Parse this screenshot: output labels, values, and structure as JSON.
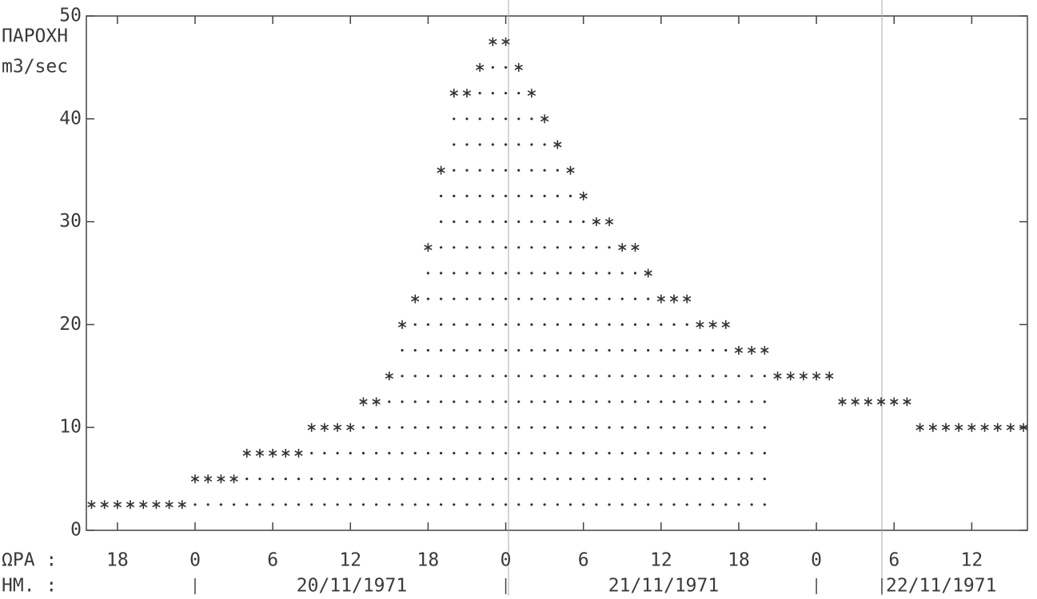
{
  "chart_data": {
    "type": "dotmatrix",
    "y_label": [
      "ΠΑΡΟΧΗ",
      "m3/sec"
    ],
    "x_row_label": "ΩΡΑ :",
    "date_row_label": "ΗΜ. :",
    "dates": [
      "20/11/1971",
      "21/11/1971",
      "22/11/1971"
    ],
    "x": [
      16,
      17,
      18,
      19,
      20,
      21,
      22,
      23,
      24,
      25,
      26,
      27,
      28,
      29,
      30,
      31,
      32,
      33,
      34,
      35,
      36,
      37,
      38,
      39,
      40,
      41,
      42,
      43,
      44,
      45,
      46,
      47,
      48,
      49,
      50,
      51,
      52,
      53,
      54,
      55,
      56,
      57,
      58,
      59,
      60,
      61,
      62,
      63,
      64,
      65,
      66,
      67,
      68,
      69,
      70,
      71,
      72,
      73,
      74,
      75,
      76,
      77,
      78,
      79,
      80,
      81,
      82,
      83,
      84,
      85,
      86,
      87,
      88
    ],
    "values": [
      2.5,
      2.5,
      2.5,
      2.5,
      2.5,
      2.5,
      2.5,
      2.5,
      5,
      5,
      5,
      5,
      7.5,
      7.5,
      7.5,
      7.5,
      7.5,
      10,
      10,
      10,
      10,
      12.5,
      12.5,
      15,
      20,
      22.5,
      27.5,
      35,
      42.5,
      42.5,
      45,
      47.5,
      47.5,
      45,
      42.5,
      40,
      37.5,
      35,
      32.5,
      30,
      30,
      27.5,
      27.5,
      25,
      22.5,
      22.5,
      22.5,
      20,
      20,
      20,
      17.5,
      17.5,
      17.5,
      15,
      15,
      15,
      15,
      15,
      12.5,
      12.5,
      12.5,
      12.5,
      12.5,
      12.5,
      10,
      10,
      10,
      10,
      10,
      10,
      10,
      10,
      10
    ],
    "color": "#333333",
    "xlim": [
      15.6,
      88.3
    ],
    "xticks": [
      {
        "value": 18,
        "label": "18"
      },
      {
        "value": 24,
        "label": "0"
      },
      {
        "value": 30,
        "label": "6"
      },
      {
        "value": 36,
        "label": "12"
      },
      {
        "value": 42,
        "label": "18"
      },
      {
        "value": 48,
        "label": "0"
      },
      {
        "value": 54,
        "label": "6"
      },
      {
        "value": 60,
        "label": "12"
      },
      {
        "value": 66,
        "label": "18"
      },
      {
        "value": 72,
        "label": "0"
      },
      {
        "value": 78,
        "label": "6"
      },
      {
        "value": 84,
        "label": "12"
      }
    ],
    "ylim": [
      0,
      50
    ],
    "yticks": [
      0,
      10,
      20,
      30,
      40,
      50
    ]
  }
}
